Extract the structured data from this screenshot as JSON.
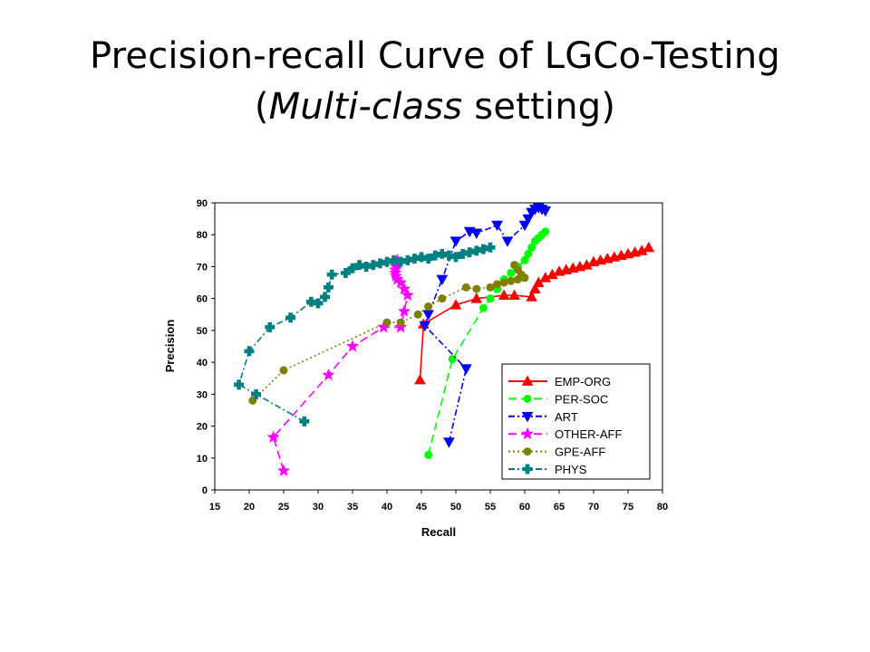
{
  "slide": {
    "title_line1": "Precision-recall Curve of LGCo-Testing",
    "title_open": "(",
    "title_italic": "Multi-class",
    "title_rest": " setting)"
  },
  "chart_data": {
    "type": "line",
    "xlabel": "Recall",
    "ylabel": "Precision",
    "xlim": [
      15,
      80
    ],
    "ylim": [
      0,
      90
    ],
    "xticks": [
      15,
      20,
      25,
      30,
      35,
      40,
      45,
      50,
      55,
      60,
      65,
      70,
      75,
      80
    ],
    "yticks": [
      0,
      10,
      20,
      30,
      40,
      50,
      60,
      70,
      80,
      90
    ],
    "grid": false,
    "legend_position": "bottom-right",
    "series": [
      {
        "name": "EMP-ORG",
        "color": "#ff0000",
        "marker": "triangle-up",
        "dash": "solid",
        "points": [
          [
            44.8,
            34.5
          ],
          [
            45.3,
            52
          ],
          [
            50,
            58
          ],
          [
            53,
            60
          ],
          [
            57,
            61
          ],
          [
            58.5,
            61
          ],
          [
            61,
            60.5
          ],
          [
            61.5,
            63
          ],
          [
            62,
            65
          ],
          [
            63,
            66.5
          ],
          [
            64,
            67.5
          ],
          [
            65,
            68.5
          ],
          [
            66,
            69
          ],
          [
            67,
            69.5
          ],
          [
            68,
            70
          ],
          [
            69,
            70.5
          ],
          [
            70,
            71.5
          ],
          [
            71,
            72
          ],
          [
            72,
            72.5
          ],
          [
            73,
            73
          ],
          [
            74,
            73.5
          ],
          [
            75,
            74
          ],
          [
            76,
            74.5
          ],
          [
            77,
            75
          ],
          [
            78,
            76
          ]
        ]
      },
      {
        "name": "PER-SOC",
        "color": "#00ff00",
        "marker": "circle",
        "dash": "longdash",
        "points": [
          [
            46,
            11
          ],
          [
            49.5,
            41
          ],
          [
            54,
            57
          ],
          [
            55,
            60
          ],
          [
            56,
            63
          ],
          [
            57,
            66
          ],
          [
            58,
            68
          ],
          [
            59,
            70
          ],
          [
            60,
            72
          ],
          [
            60.5,
            74
          ],
          [
            61,
            76
          ],
          [
            61.5,
            78
          ],
          [
            62,
            79
          ],
          [
            62.5,
            80
          ],
          [
            63,
            81
          ]
        ]
      },
      {
        "name": "ART",
        "color": "#0000ff",
        "marker": "triangle-down",
        "dash": "dashdot",
        "points": [
          [
            49,
            15
          ],
          [
            51.5,
            38
          ],
          [
            45.5,
            51.5
          ],
          [
            46,
            55
          ],
          [
            48,
            66
          ],
          [
            50,
            78
          ],
          [
            52,
            81
          ],
          [
            53,
            80.5
          ],
          [
            56,
            83
          ],
          [
            57.5,
            78
          ],
          [
            60,
            83
          ],
          [
            60.5,
            85
          ],
          [
            61,
            87
          ],
          [
            61.5,
            88
          ],
          [
            62,
            88.5
          ],
          [
            62.5,
            88
          ],
          [
            63,
            87.5
          ]
        ]
      },
      {
        "name": "OTHER-AFF",
        "color": "#ff00ff",
        "marker": "star",
        "dash": "longdash",
        "points": [
          [
            25,
            6
          ],
          [
            23.5,
            16.5
          ],
          [
            31.5,
            36
          ],
          [
            35,
            45
          ],
          [
            39.5,
            51
          ],
          [
            42,
            51
          ],
          [
            42.5,
            56
          ],
          [
            43,
            61
          ],
          [
            42.5,
            63
          ],
          [
            42,
            65
          ],
          [
            41.5,
            66
          ],
          [
            41.3,
            67
          ],
          [
            41.2,
            68
          ],
          [
            41.2,
            69
          ],
          [
            41.3,
            70
          ],
          [
            41.5,
            71
          ],
          [
            41.5,
            72
          ]
        ]
      },
      {
        "name": "GPE-AFF",
        "color": "#808000",
        "marker": "circle",
        "dash": "dotted",
        "points": [
          [
            20.5,
            28
          ],
          [
            25,
            37.5
          ],
          [
            40,
            52.5
          ],
          [
            42,
            52.5
          ],
          [
            44.5,
            55
          ],
          [
            46,
            57.5
          ],
          [
            48,
            60
          ],
          [
            51.5,
            63.5
          ],
          [
            53,
            63
          ],
          [
            55,
            63.5
          ],
          [
            56,
            64.5
          ],
          [
            57,
            65
          ],
          [
            58,
            65.5
          ],
          [
            59,
            66
          ],
          [
            60,
            66.5
          ],
          [
            59.5,
            67.5
          ],
          [
            59,
            69
          ],
          [
            58.5,
            70.5
          ]
        ]
      },
      {
        "name": "PHYS",
        "color": "#008080",
        "marker": "plus",
        "dash": "dashdot",
        "points": [
          [
            28,
            21.5
          ],
          [
            21,
            30
          ],
          [
            18.5,
            33
          ],
          [
            20,
            43.5
          ],
          [
            23,
            51
          ],
          [
            26,
            54
          ],
          [
            29,
            59
          ],
          [
            30,
            58.5
          ],
          [
            31,
            60.5
          ],
          [
            31.5,
            63.5
          ],
          [
            32,
            67.5
          ],
          [
            34,
            68
          ],
          [
            35,
            69.5
          ],
          [
            36,
            70.5
          ],
          [
            37,
            70
          ],
          [
            38,
            70.5
          ],
          [
            39,
            71
          ],
          [
            40,
            71.5
          ],
          [
            41,
            72
          ],
          [
            42,
            71.5
          ],
          [
            43,
            72
          ],
          [
            44,
            72.5
          ],
          [
            45,
            73
          ],
          [
            46,
            72.5
          ],
          [
            47,
            73.5
          ],
          [
            48,
            74
          ],
          [
            49,
            73.5
          ],
          [
            50,
            73
          ],
          [
            51,
            74
          ],
          [
            52,
            74.5
          ],
          [
            53,
            75
          ],
          [
            54,
            75.5
          ],
          [
            55,
            76
          ]
        ]
      }
    ]
  }
}
